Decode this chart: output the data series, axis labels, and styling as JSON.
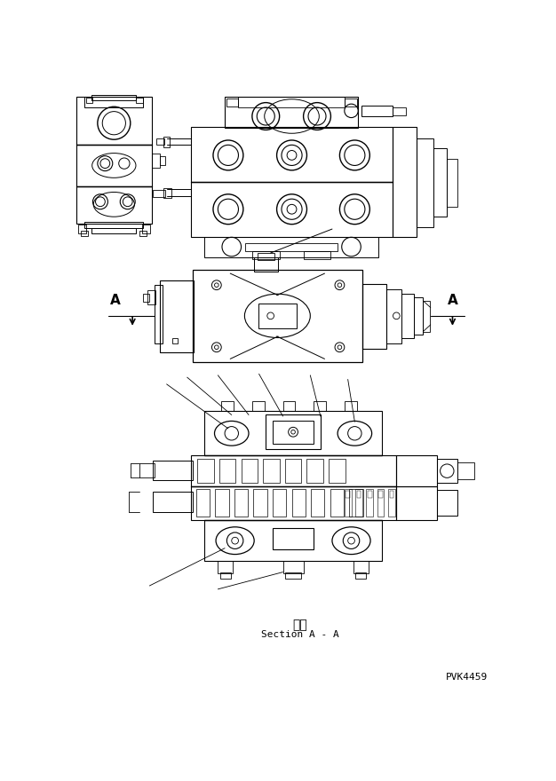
{
  "bg_color": "#ffffff",
  "line_color": "#000000",
  "fig_width": 6.26,
  "fig_height": 8.8,
  "dpi": 100,
  "section_label": "断面",
  "section_label_en": "Section A - A",
  "part_code": "PVK4459",
  "A_label": "A"
}
